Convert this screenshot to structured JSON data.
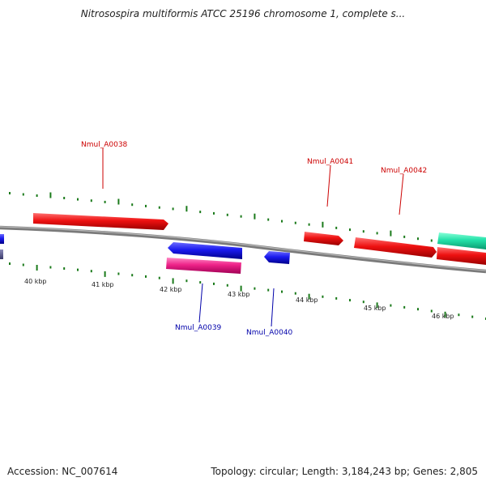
{
  "title": "Nitrosospira multiformis ATCC 25196 chromosome 1, complete s...",
  "footer": {
    "accession": "Accession: NC_007614",
    "summary": "Topology: circular; Length: 3,184,243 bp; Genes: 2,805"
  },
  "colors": {
    "forward_gene": "#ee1111",
    "reverse_gene": "#1a1aee",
    "rna_gene": "#ee2288",
    "other_gene": "#22e0a8",
    "backbone": "#888888",
    "tick": "#1a7a1a",
    "label_forward": "#cc0000",
    "label_reverse": "#0000aa"
  },
  "scale_labels": [
    "40 kbp",
    "41 kbp",
    "42 kbp",
    "43 kbp",
    "44 kbp",
    "45 kbp",
    "46 kbp"
  ],
  "gene_labels": {
    "nmul_a0038": "Nmul_A0038",
    "nmul_a0039": "Nmul_A0039",
    "nmul_a0040": "Nmul_A0040",
    "nmul_a0041": "Nmul_A0041",
    "nmul_a0042": "Nmul_A0042"
  }
}
